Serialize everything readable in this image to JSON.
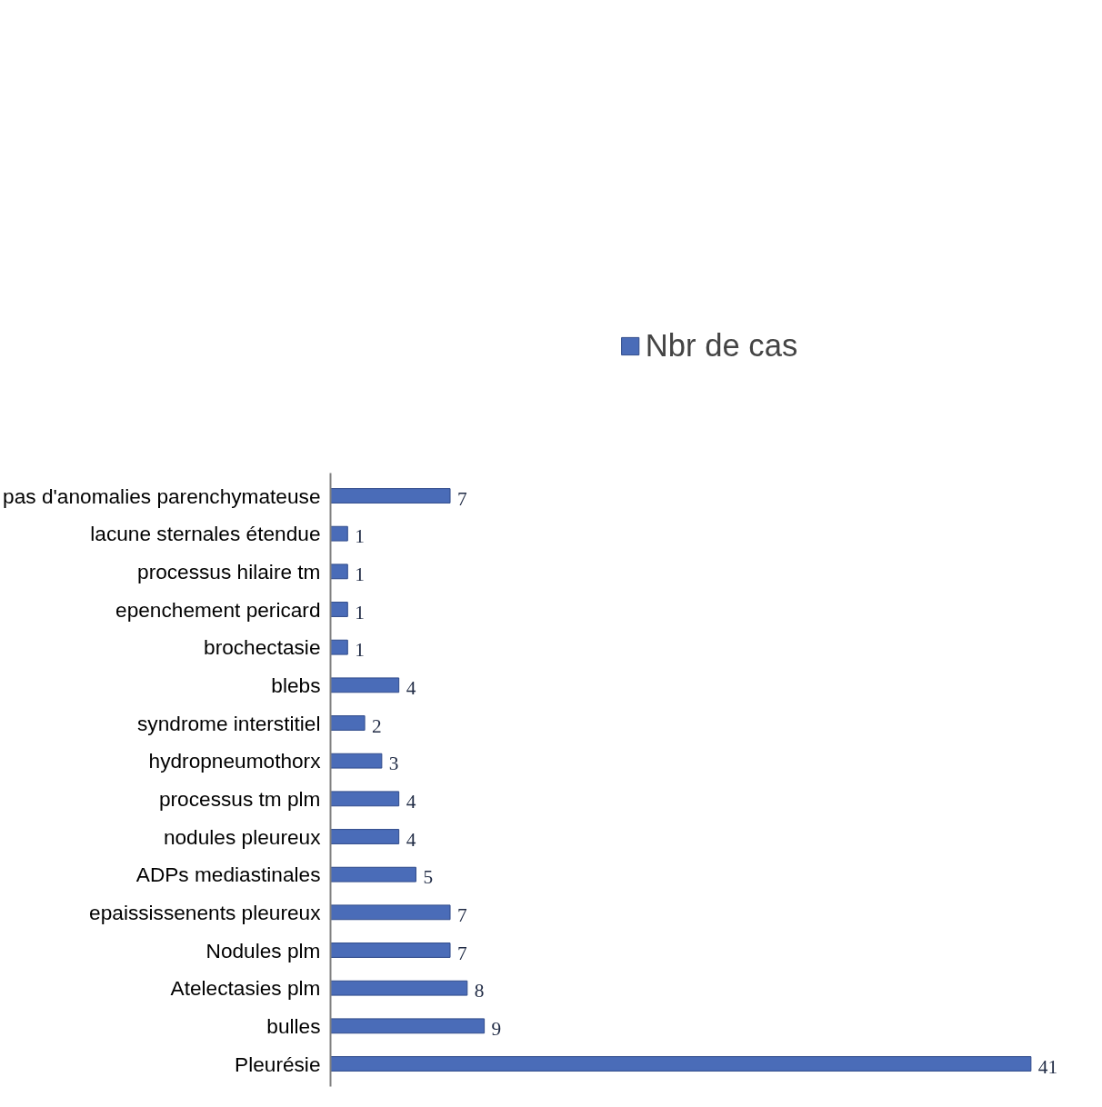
{
  "chart_data": {
    "type": "bar",
    "orientation": "horizontal",
    "categories": [
      "pas d'anomalies parenchymateuse",
      "lacune sternales étendue",
      "processus hilaire tm",
      "epenchement pericard",
      "brochectasie",
      "blebs",
      "syndrome interstitiel",
      "hydropneumothorx",
      "processus tm plm",
      "nodules pleureux",
      "ADPs mediastinales",
      "epaississenents pleureux",
      "Nodules plm",
      "Atelectasies plm",
      "bulles",
      "Pleurésie"
    ],
    "series": [
      {
        "name": "Nbr de cas",
        "color": "#4a6cb8",
        "values": [
          7,
          1,
          1,
          1,
          1,
          4,
          2,
          3,
          4,
          4,
          5,
          7,
          7,
          8,
          9,
          41
        ]
      }
    ],
    "data_labels": true,
    "legend": "top",
    "grid": false
  }
}
